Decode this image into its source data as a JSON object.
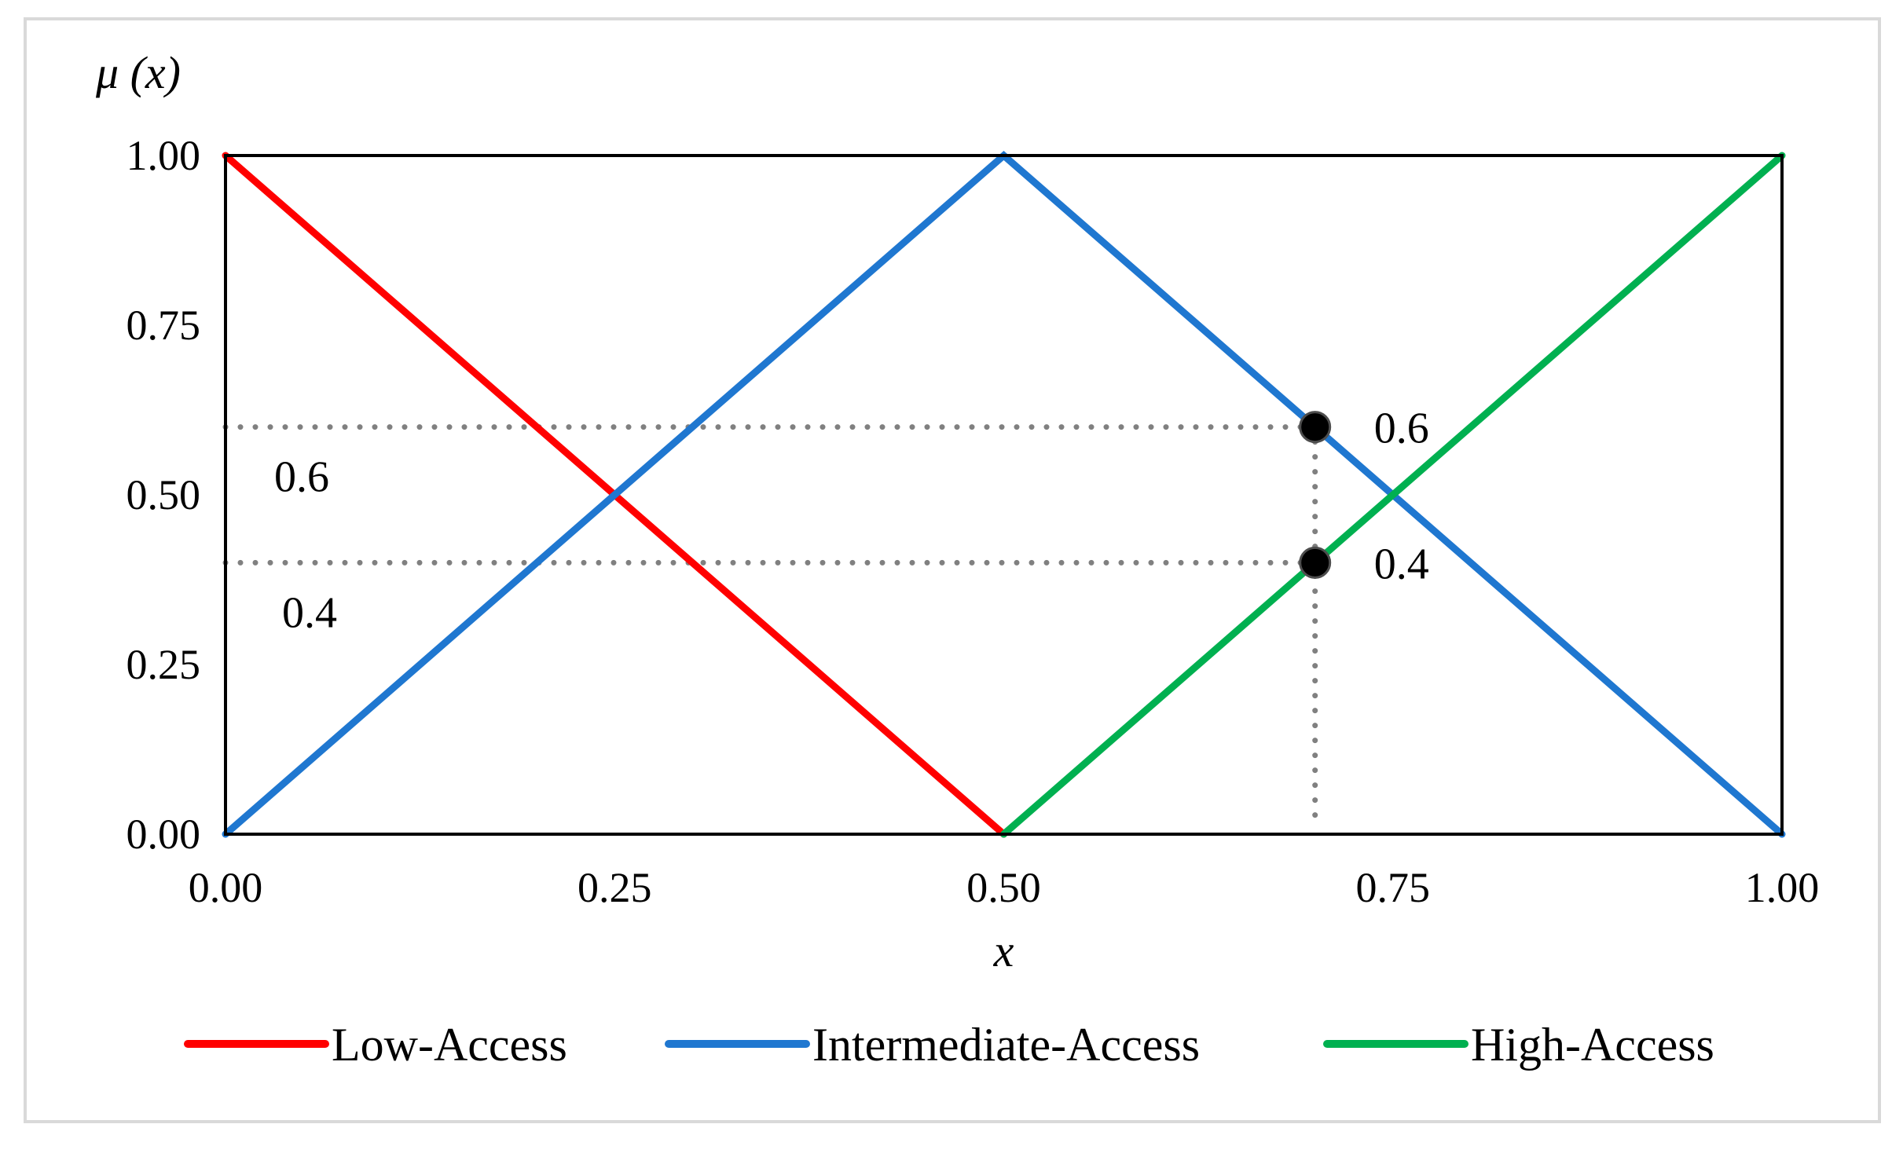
{
  "chart_data": {
    "type": "line",
    "title": "",
    "xlabel": "x",
    "ylabel": "μ (x)",
    "xlim": [
      0,
      1
    ],
    "ylim": [
      0,
      1
    ],
    "x_ticks": [
      "0.00",
      "0.25",
      "0.50",
      "0.75",
      "1.00"
    ],
    "y_ticks": [
      "0.00",
      "0.25",
      "0.50",
      "0.75",
      "1.00"
    ],
    "grid": false,
    "legend_position": "bottom",
    "series": [
      {
        "name": "Low-Access",
        "color": "#ff0000",
        "x": [
          0,
          0.5
        ],
        "y": [
          1,
          0
        ]
      },
      {
        "name": "Intermediate-Access",
        "color": "#1f77d0",
        "x": [
          0,
          0.5,
          1
        ],
        "y": [
          0,
          1,
          0
        ]
      },
      {
        "name": "High-Access",
        "color": "#00b050",
        "x": [
          0.5,
          1
        ],
        "y": [
          0,
          1
        ]
      }
    ],
    "reference_lines": {
      "x": 0.7,
      "y_values": [
        0.6,
        0.4
      ],
      "style": "dotted",
      "color": "#808080"
    },
    "points": [
      {
        "x": 0.7,
        "y": 0.6,
        "label": "0.6"
      },
      {
        "x": 0.7,
        "y": 0.4,
        "label": "0.4"
      }
    ],
    "axis_annotations": [
      {
        "y": 0.6,
        "label": "0.6"
      },
      {
        "y": 0.4,
        "label": "0.4"
      }
    ]
  }
}
